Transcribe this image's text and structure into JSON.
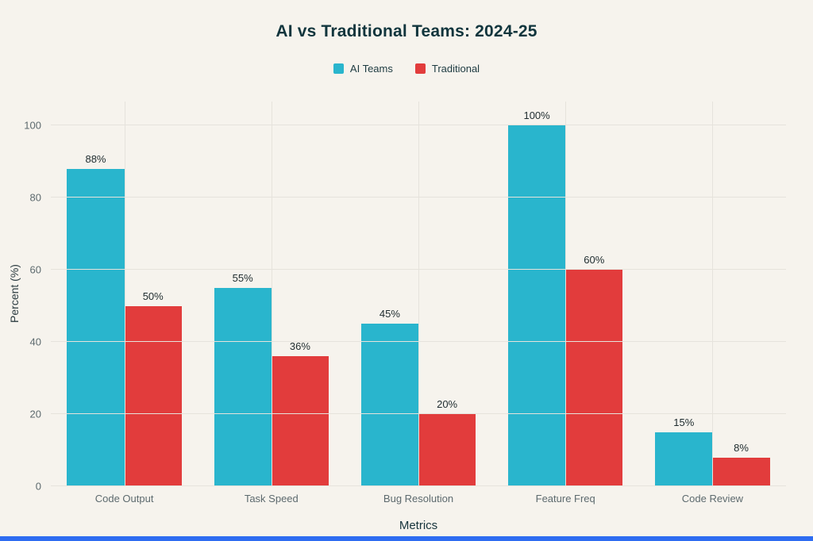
{
  "page": {
    "background": "#f6f3ed",
    "accent_strip_color": "#2e6cf1"
  },
  "chart_data": {
    "type": "bar",
    "title": "AI vs Traditional Teams: 2024-25",
    "xlabel": "Metrics",
    "ylabel": "Percent (%)",
    "categories": [
      "Code Output",
      "Task Speed",
      "Bug Resolution",
      "Feature Freq",
      "Code Review"
    ],
    "series": [
      {
        "name": "AI Teams",
        "color": "#29b5cd",
        "values": [
          88,
          55,
          45,
          100,
          15
        ]
      },
      {
        "name": "Traditional",
        "color": "#e23c3c",
        "values": [
          50,
          36,
          20,
          60,
          8
        ]
      }
    ],
    "ylim": [
      0,
      100
    ],
    "yticks": [
      0,
      20,
      40,
      60,
      80,
      100
    ],
    "grid": true,
    "legend_position": "top",
    "value_label_format": "{v}%"
  }
}
